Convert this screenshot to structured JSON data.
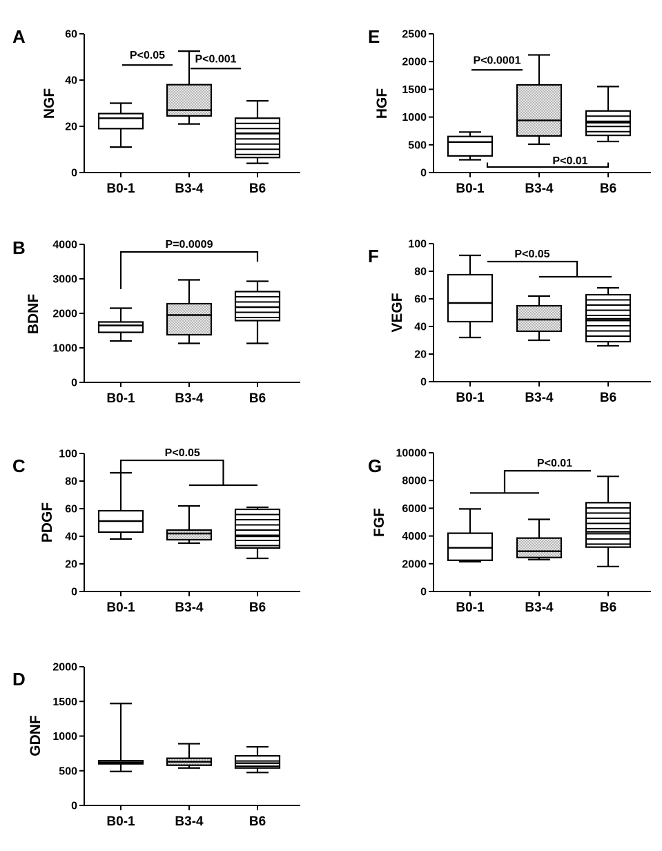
{
  "chart_data": [
    {
      "panel": "A",
      "type": "box",
      "ylabel": "NGF",
      "categories": [
        "B0-1",
        "B3-4",
        "B6"
      ],
      "ylim": [
        0,
        60
      ],
      "yticks": [
        0,
        20,
        40,
        60
      ],
      "fills": [
        "blank",
        "dots",
        "hlines"
      ],
      "boxes": [
        {
          "min": 11,
          "q1": 19,
          "median": 23.5,
          "q3": 25.5,
          "max": 30
        },
        {
          "min": 21,
          "q1": 24.5,
          "median": 27,
          "q3": 38,
          "max": 52.5
        },
        {
          "min": 4,
          "q1": 6.5,
          "median": 17,
          "q3": 23.5,
          "max": 31
        }
      ],
      "annotations": [
        {
          "text": "P<0.05",
          "type": "line",
          "from": 0,
          "to": 1,
          "y": 46.5
        },
        {
          "text": "P<0.001",
          "type": "line",
          "from": 1,
          "to": 2,
          "y": 45
        }
      ]
    },
    {
      "panel": "B",
      "type": "box",
      "ylabel": "BDNF",
      "categories": [
        "B0-1",
        "B3-4",
        "B6"
      ],
      "ylim": [
        0,
        4000
      ],
      "yticks": [
        0,
        1000,
        2000,
        3000,
        4000
      ],
      "fills": [
        "blank",
        "dots",
        "hlines"
      ],
      "boxes": [
        {
          "min": 1200,
          "q1": 1450,
          "median": 1650,
          "q3": 1750,
          "max": 2150
        },
        {
          "min": 1130,
          "q1": 1380,
          "median": 1950,
          "q3": 2280,
          "max": 2970
        },
        {
          "min": 1130,
          "q1": 1790,
          "median": 2180,
          "q3": 2630,
          "max": 2930
        }
      ],
      "annotations": [
        {
          "text": "P=0.0009",
          "type": "bracket",
          "from": 0,
          "to": 2,
          "y": 3780,
          "from_end": 2700,
          "to_end": 3500
        }
      ]
    },
    {
      "panel": "C",
      "type": "box",
      "ylabel": "PDGF",
      "categories": [
        "B0-1",
        "B3-4",
        "B6"
      ],
      "ylim": [
        0,
        100
      ],
      "yticks": [
        0,
        20,
        40,
        60,
        80,
        100
      ],
      "fills": [
        "blank",
        "dots",
        "hlines"
      ],
      "boxes": [
        {
          "min": 38,
          "q1": 43,
          "median": 51,
          "q3": 58.5,
          "max": 86
        },
        {
          "min": 35,
          "q1": 37.5,
          "median": 42,
          "q3": 44.5,
          "max": 62
        },
        {
          "min": 24,
          "q1": 31.5,
          "median": 40,
          "q3": 59.5,
          "max": 61
        }
      ],
      "annotations": [
        {
          "text": "P<0.05",
          "type": "group",
          "from": 0,
          "to": 1.5,
          "y": 95,
          "from_end": 86,
          "group_from": 1,
          "group_to": 2,
          "group_y": 77
        }
      ]
    },
    {
      "panel": "D",
      "type": "box",
      "ylabel": "GDNF",
      "categories": [
        "B0-1",
        "B3-4",
        "B6"
      ],
      "ylim": [
        0,
        2000
      ],
      "yticks": [
        0,
        500,
        1000,
        1500,
        2000
      ],
      "fills": [
        "blank",
        "dots",
        "hlines"
      ],
      "boxes": [
        {
          "min": 490,
          "q1": 600,
          "median": 620,
          "q3": 645,
          "max": 1470
        },
        {
          "min": 540,
          "q1": 580,
          "median": 630,
          "q3": 680,
          "max": 890
        },
        {
          "min": 475,
          "q1": 540,
          "median": 610,
          "q3": 715,
          "max": 845
        }
      ],
      "annotations": []
    },
    {
      "panel": "E",
      "type": "box",
      "ylabel": "HGF",
      "categories": [
        "B0-1",
        "B3-4",
        "B6"
      ],
      "ylim": [
        0,
        2500
      ],
      "yticks": [
        0,
        500,
        1000,
        1500,
        2000,
        2500
      ],
      "fills": [
        "blank",
        "dots",
        "hlines"
      ],
      "boxes": [
        {
          "min": 230,
          "q1": 300,
          "median": 550,
          "q3": 650,
          "max": 730
        },
        {
          "min": 510,
          "q1": 660,
          "median": 940,
          "q3": 1580,
          "max": 2120
        },
        {
          "min": 560,
          "q1": 670,
          "median": 900,
          "q3": 1110,
          "max": 1550
        }
      ],
      "annotations": [
        {
          "text": "P<0.0001",
          "type": "line",
          "from": 0,
          "to": 1,
          "y": 1850
        },
        {
          "text": "P<0.01",
          "type": "bracket_down",
          "from": 0.25,
          "to": 2,
          "y": 100,
          "from_end": 180,
          "to_end": 180
        }
      ]
    },
    {
      "panel": "F",
      "type": "box",
      "ylabel": "VEGF",
      "categories": [
        "B0-1",
        "B3-4",
        "B6"
      ],
      "ylim": [
        0,
        100
      ],
      "yticks": [
        0,
        20,
        40,
        60,
        80,
        100
      ],
      "fills": [
        "blank",
        "dots",
        "hlines"
      ],
      "boxes": [
        {
          "min": 32,
          "q1": 43.5,
          "median": 57,
          "q3": 77.5,
          "max": 91.5
        },
        {
          "min": 30,
          "q1": 36.5,
          "median": 45,
          "q3": 55,
          "max": 62
        },
        {
          "min": 26,
          "q1": 29,
          "median": 45.5,
          "q3": 63,
          "max": 68
        }
      ],
      "annotations": [
        {
          "text": "P<0.05",
          "type": "group",
          "from": 0.25,
          "to": 1.55,
          "y": 87,
          "from_end": 87,
          "group_from": 1,
          "group_to": 2.05,
          "group_y": 76
        }
      ]
    },
    {
      "panel": "G",
      "type": "box",
      "ylabel": "FGF",
      "categories": [
        "B0-1",
        "B3-4",
        "B6"
      ],
      "ylim": [
        0,
        10000
      ],
      "yticks": [
        0,
        2000,
        4000,
        6000,
        8000,
        10000
      ],
      "fills": [
        "blank",
        "dots",
        "hlines"
      ],
      "boxes": [
        {
          "min": 2150,
          "q1": 2250,
          "median": 3150,
          "q3": 4200,
          "max": 5950
        },
        {
          "min": 2300,
          "q1": 2450,
          "median": 2900,
          "q3": 3850,
          "max": 5200
        },
        {
          "min": 1800,
          "q1": 3200,
          "median": 4300,
          "q3": 6400,
          "max": 8300
        }
      ],
      "annotations": [
        {
          "text": "P<0.01",
          "type": "group_right",
          "from": 0.5,
          "to": 1.75,
          "y": 8700,
          "group_from": 0,
          "group_to": 1,
          "group_y": 7100
        }
      ]
    }
  ]
}
